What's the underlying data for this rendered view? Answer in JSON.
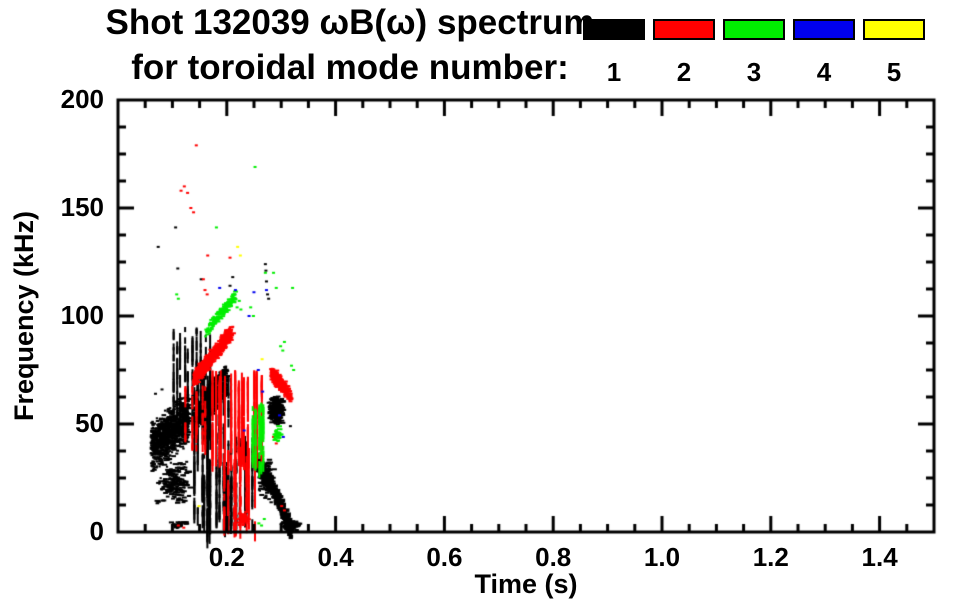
{
  "title": {
    "line1": "Shot 132039 ωB(ω) spectrum",
    "line2": "for toroidal mode number:"
  },
  "legend": {
    "items": [
      {
        "label": "1",
        "color": "#000000"
      },
      {
        "label": "2",
        "color": "#ff0000"
      },
      {
        "label": "3",
        "color": "#00ee00"
      },
      {
        "label": "4",
        "color": "#0000ee"
      },
      {
        "label": "5",
        "color": "#ffff00"
      }
    ]
  },
  "axes": {
    "x": {
      "label": "Time (s)",
      "min": 0,
      "max": 1.5,
      "minor_step": 0.05,
      "major_ticks": [
        0.2,
        0.4,
        0.6,
        0.8,
        1.0,
        1.2,
        1.4
      ],
      "tick_labels": [
        "0.2",
        "0.4",
        "0.6",
        "0.8",
        "1.0",
        "1.2",
        "1.4"
      ]
    },
    "y": {
      "label": "Frequency (kHz)",
      "min": 0,
      "max": 200,
      "minor_step": 12.5,
      "major_ticks": [
        0,
        50,
        100,
        150,
        200
      ],
      "tick_labels": [
        "0",
        "50",
        "100",
        "150",
        "200"
      ]
    }
  },
  "chart_data": {
    "type": "scatter",
    "title": "Shot 132039 ωB(ω) spectrum for toroidal mode number: 1 2 3 4 5",
    "xlabel": "Time (s)",
    "ylabel": "Frequency (kHz)",
    "xlim": [
      0,
      1.5
    ],
    "ylim": [
      0,
      200
    ],
    "grid": false,
    "legend_position": "top-right",
    "series": [
      {
        "name": "1",
        "color": "#000000",
        "clusters": [
          {
            "shape": "band",
            "t": [
              0.058,
              0.127
            ],
            "f_start": 40,
            "f_end": 53,
            "width": 26,
            "n": 950
          },
          {
            "shape": "blob",
            "t": [
              0.065,
              0.135
            ],
            "f": [
              13,
              34
            ],
            "n": 200
          },
          {
            "shape": "band",
            "t": [
              0.135,
              0.197
            ],
            "f_start": 52,
            "f_end": 70,
            "width": 16,
            "n": 480
          },
          {
            "shape": "band",
            "t": [
              0.15,
              0.197
            ],
            "f_start": 63,
            "f_end": 76,
            "width": 6,
            "n": 150
          },
          {
            "shape": "vstreaks",
            "t": [
              0.098,
              0.168
            ],
            "f": [
              52,
              95
            ],
            "streaks": 10,
            "n": 150,
            "len": [
              5,
              18
            ]
          },
          {
            "shape": "vstreaks",
            "t": [
              0.135,
              0.212
            ],
            "f": [
              5,
              75
            ],
            "streaks": 12,
            "n": 260,
            "len": [
              5,
              20
            ]
          },
          {
            "shape": "vstreaks",
            "t": [
              0.161,
              0.168
            ],
            "f": [
              2,
              64
            ],
            "streaks": 2,
            "n": 40,
            "len": [
              12,
              40
            ]
          },
          {
            "shape": "vstreaks",
            "t": [
              0.195,
              0.247
            ],
            "f": [
              5,
              45
            ],
            "streaks": 8,
            "n": 130,
            "len": [
              4,
              16
            ]
          },
          {
            "shape": "blob",
            "t": [
              0.272,
              0.303
            ],
            "f": [
              50,
              64
            ],
            "n": 280
          },
          {
            "shape": "blob",
            "t": [
              0.252,
              0.285
            ],
            "f": [
              14,
              36
            ],
            "n": 130
          },
          {
            "shape": "chirp",
            "t": [
              0.245,
              0.315
            ],
            "f_start": 36,
            "f_end": 2,
            "width": 9,
            "n": 420
          },
          {
            "shape": "blob",
            "t": [
              0.295,
              0.332
            ],
            "f": [
              1,
              6
            ],
            "n": 90
          },
          {
            "shape": "blob",
            "t": [
              0.092,
              0.128
            ],
            "f": [
              2,
              6
            ],
            "n": 22
          },
          {
            "shape": "specks",
            "points": [
              [
                0.068,
                64
              ],
              [
                0.073,
                132
              ],
              [
                0.08,
                66
              ],
              [
                0.105,
                141
              ],
              [
                0.109,
                122
              ],
              [
                0.152,
                117
              ],
              [
                0.205,
                114
              ],
              [
                0.21,
                118
              ],
              [
                0.27,
                124
              ],
              [
                0.271,
                121
              ],
              [
                0.272,
                116
              ],
              [
                0.274,
                110
              ],
              [
                0.276,
                108
              ],
              [
                0.316,
                49
              ]
            ]
          }
        ]
      },
      {
        "name": "2",
        "color": "#ff0000",
        "clusters": [
          {
            "shape": "band",
            "t": [
              0.136,
              0.205
            ],
            "f_start": 71,
            "f_end": 93,
            "width": 9,
            "n": 620
          },
          {
            "shape": "vstreaks",
            "t": [
              0.165,
              0.265
            ],
            "f": [
              35,
              75
            ],
            "streaks": 14,
            "n": 400,
            "len": [
              5,
              20
            ]
          },
          {
            "shape": "vstreaks",
            "t": [
              0.19,
              0.25
            ],
            "f": [
              2,
              40
            ],
            "streaks": 8,
            "n": 150,
            "len": [
              5,
              18
            ]
          },
          {
            "shape": "vstreaks",
            "t": [
              0.12,
              0.165
            ],
            "f": [
              40,
              68
            ],
            "streaks": 6,
            "n": 70,
            "len": [
              4,
              12
            ]
          },
          {
            "shape": "band",
            "t": [
              0.278,
              0.315
            ],
            "f_start": 74,
            "f_end": 64,
            "width": 8,
            "n": 260
          },
          {
            "shape": "blob",
            "t": [
              0.218,
              0.237
            ],
            "f": [
              3,
              10
            ],
            "n": 40
          },
          {
            "shape": "specks",
            "points": [
              [
                0.115,
                158
              ],
              [
                0.121,
                160
              ],
              [
                0.127,
                157
              ],
              [
                0.133,
                150
              ],
              [
                0.138,
                148
              ],
              [
                0.143,
                179
              ],
              [
                0.156,
                117
              ],
              [
                0.159,
                112
              ],
              [
                0.163,
                110
              ],
              [
                0.164,
                128
              ],
              [
                0.205,
                127
              ],
              [
                0.21,
                95
              ],
              [
                0.213,
                92
              ],
              [
                0.285,
                44
              ],
              [
                0.29,
                41
              ],
              [
                0.297,
                68
              ],
              [
                0.3,
                12
              ],
              [
                0.305,
                10
              ],
              [
                0.11,
                3
              ],
              [
                0.12,
                2
              ]
            ]
          }
        ]
      },
      {
        "name": "3",
        "color": "#00ee00",
        "clusters": [
          {
            "shape": "band",
            "t": [
              0.158,
              0.213
            ],
            "f_start": 93,
            "f_end": 110,
            "width": 6,
            "n": 170
          },
          {
            "shape": "vstreaks",
            "t": [
              0.245,
              0.268
            ],
            "f": [
              30,
              60
            ],
            "streaks": 5,
            "n": 80,
            "len": [
              4,
              14
            ]
          },
          {
            "shape": "blob",
            "t": [
              0.283,
              0.296
            ],
            "f": [
              40,
              50
            ],
            "n": 30
          },
          {
            "shape": "specks",
            "points": [
              [
                0.218,
                104
              ],
              [
                0.222,
                107
              ],
              [
                0.225,
                103
              ],
              [
                0.243,
                104
              ],
              [
                0.248,
                100
              ],
              [
                0.298,
                86
              ],
              [
                0.302,
                84
              ],
              [
                0.305,
                88
              ],
              [
                0.318,
                77
              ],
              [
                0.322,
                75
              ],
              [
                0.27,
                120
              ],
              [
                0.285,
                120
              ],
              [
                0.29,
                113
              ],
              [
                0.32,
                113
              ],
              [
                0.251,
                169
              ],
              [
                0.18,
                141
              ],
              [
                0.107,
                110
              ],
              [
                0.11,
                108
              ],
              [
                0.258,
                4
              ],
              [
                0.263,
                3
              ],
              [
                0.268,
                6
              ]
            ]
          }
        ]
      },
      {
        "name": "4",
        "color": "#0000ee",
        "clusters": [
          {
            "shape": "specks",
            "points": [
              [
                0.186,
                113
              ],
              [
                0.215,
                112
              ],
              [
                0.24,
                100
              ],
              [
                0.249,
                111
              ],
              [
                0.272,
                112
              ],
              [
                0.257,
                75
              ],
              [
                0.265,
                65
              ],
              [
                0.231,
                47
              ],
              [
                0.296,
                54
              ],
              [
                0.303,
                44
              ]
            ]
          }
        ]
      },
      {
        "name": "5",
        "color": "#ffff00",
        "clusters": [
          {
            "shape": "specks",
            "points": [
              [
                0.219,
                132
              ],
              [
                0.224,
                128
              ],
              [
                0.264,
                80
              ],
              [
                0.148,
                12
              ]
            ]
          }
        ]
      }
    ]
  }
}
